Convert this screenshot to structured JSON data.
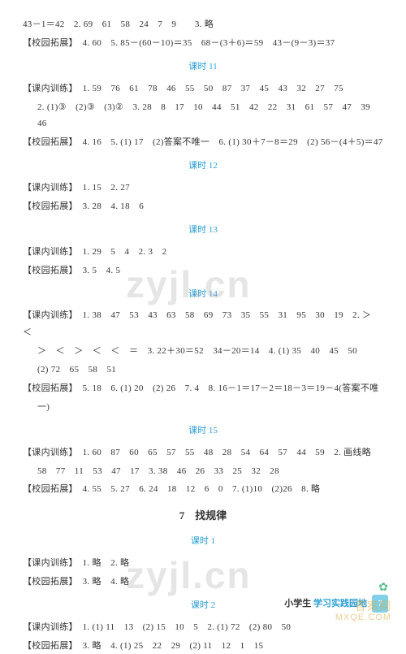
{
  "top_lines": [
    "43－1＝42　2. 69　61　58　24　7　9　　3. 略",
    "【校园拓展】　4. 60　5. 85－(60－10)＝35　68－(3＋6)＝59　43－(9－3)＝37"
  ],
  "sections": [
    {
      "heading": "课时 11",
      "blocks": [
        {
          "text": "【课内训练】　1. 59　76　61　78　46　55　50　87　37　45　43　32　27　75"
        },
        {
          "text": "2. (1)③　(2)③　(3)②　3. 28　8　17　10　44　51　42　22　31　61　57　47　39　46",
          "indent": true
        },
        {
          "text": "【校园拓展】　4. 16　5. (1) 17　(2)答案不唯一　6. (1) 30＋7－8＝29　(2) 56－(4＋5)＝47"
        }
      ]
    },
    {
      "heading": "课时 12",
      "blocks": [
        {
          "text": "【课内训练】　1. 15　2. 27"
        },
        {
          "text": "【校园拓展】　3. 28　4. 18　6"
        }
      ]
    },
    {
      "heading": "课时 13",
      "blocks": [
        {
          "text": "【课内训练】　1. 29　5　4　2. 3　2"
        },
        {
          "text": "【校园拓展】　3. 5　4. 5"
        }
      ]
    },
    {
      "heading": "课时 14",
      "blocks": [
        {
          "text": "【课内训练】　1. 38　47　53　43　63　58　69　73　35　55　31　95　30　19　2. ＞　＜"
        },
        {
          "text": "＞　＜　＞　＜　＜　＝　3. 22＋30＝52　34－20＝14　4. (1) 35　40　45　50",
          "indent": true
        },
        {
          "text": "(2) 72　65　58　51",
          "indent": true
        },
        {
          "text": "【校园拓展】　5. 18　6. (1) 20　(2) 26　7. 4　8. 16－1＝17－2＝18－3＝19－4(答案不唯"
        },
        {
          "text": "一)",
          "indent": true
        }
      ]
    },
    {
      "heading": "课时 15",
      "blocks": [
        {
          "text": "【课内训练】　1. 60　87　60　65　57　55　48　28　54　64　57　44　59　2. 画线略"
        },
        {
          "text": "58　77　11　53　47　17　3. 38　46　26　33　25　32　28",
          "indent": true
        },
        {
          "text": "【校园拓展】　4. 55　5. 27　6. 24　18　12　6　0　7. (1)10　(2)26　8. 略"
        }
      ]
    }
  ],
  "chapter": "7　找规律",
  "chapter_sections": [
    {
      "heading": "课时 1",
      "blocks": [
        {
          "text": "【课内训练】　1. 略　2. 略"
        },
        {
          "text": "【校园拓展】　3. 略　4. 略"
        }
      ]
    },
    {
      "heading": "课时 2",
      "blocks": [
        {
          "text": "【课内训练】　1. (1) 11　13　(2) 15　10　5　2. (1) 72　(2) 80　50"
        },
        {
          "text": "【校园拓展】　3. 略　4. (1) 25　22　29　(2) 11　12　1　15"
        }
      ]
    }
  ],
  "footer": {
    "prefix": "小学生",
    "suffix": "学习实践园地",
    "page": "7"
  },
  "watermark": "zyjl.cn",
  "bottom_watermark_line1": "答案网",
  "bottom_watermark_line2": "MXQE.COM"
}
